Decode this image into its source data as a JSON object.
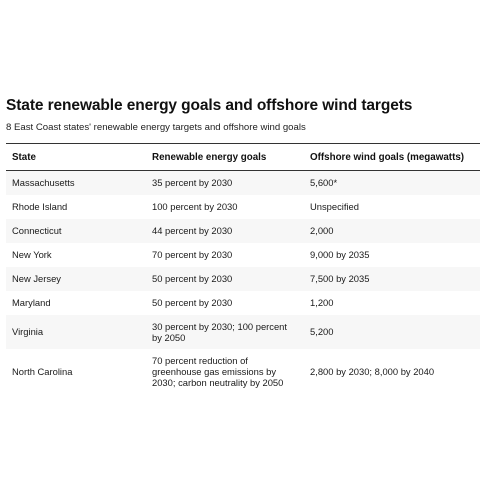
{
  "title": "State renewable energy goals and offshore wind targets",
  "subtitle": "8 East Coast states' renewable energy targets and offshore wind goals",
  "columns": [
    "State",
    "Renewable energy goals",
    "Offshore wind goals (megawatts)"
  ],
  "rows": [
    {
      "state": "Massachusetts",
      "renewable": "35 percent by 2030",
      "wind": "5,600*"
    },
    {
      "state": "Rhode Island",
      "renewable": "100 percent by 2030",
      "wind": "Unspecified"
    },
    {
      "state": "Connecticut",
      "renewable": "44 percent by 2030",
      "wind": "2,000"
    },
    {
      "state": "New York",
      "renewable": "70 percent by 2030",
      "wind": "9,000 by 2035"
    },
    {
      "state": "New Jersey",
      "renewable": "50 percent by 2030",
      "wind": "7,500 by 2035"
    },
    {
      "state": "Maryland",
      "renewable": "50 percent by 2030",
      "wind": "1,200"
    },
    {
      "state": "Virginia",
      "renewable": "30 percent by 2030; 100 percent by 2050",
      "wind": "5,200"
    },
    {
      "state": "North Carolina",
      "renewable": "70 percent reduction of greenhouse gas emissions by 2030; carbon neutrality by 2050",
      "wind": "2,800 by 2030; 8,000 by 2040"
    }
  ]
}
